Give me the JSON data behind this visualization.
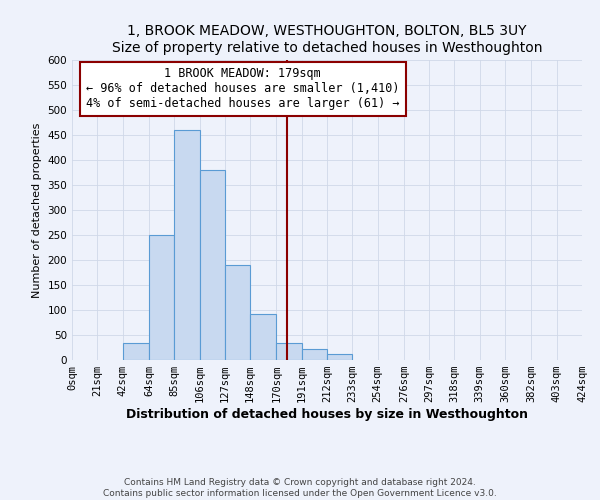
{
  "title": "1, BROOK MEADOW, WESTHOUGHTON, BOLTON, BL5 3UY",
  "subtitle": "Size of property relative to detached houses in Westhoughton",
  "xlabel": "Distribution of detached houses by size in Westhoughton",
  "ylabel": "Number of detached properties",
  "bin_edges": [
    0,
    21,
    42,
    64,
    85,
    106,
    127,
    148,
    170,
    191,
    212,
    233,
    254,
    276,
    297,
    318,
    339,
    360,
    382,
    403,
    424
  ],
  "bin_labels": [
    "0sqm",
    "21sqm",
    "42sqm",
    "64sqm",
    "85sqm",
    "106sqm",
    "127sqm",
    "148sqm",
    "170sqm",
    "191sqm",
    "212sqm",
    "233sqm",
    "254sqm",
    "276sqm",
    "297sqm",
    "318sqm",
    "339sqm",
    "360sqm",
    "382sqm",
    "403sqm",
    "424sqm"
  ],
  "counts": [
    0,
    0,
    35,
    250,
    460,
    380,
    190,
    92,
    35,
    22,
    12,
    0,
    0,
    0,
    0,
    0,
    0,
    0,
    0,
    0
  ],
  "bar_facecolor": "#c8d9f0",
  "bar_edgecolor": "#5a9bd4",
  "vline_x": 179,
  "vline_color": "#8b0000",
  "annotation_title": "1 BROOK MEADOW: 179sqm",
  "annotation_line1": "← 96% of detached houses are smaller (1,410)",
  "annotation_line2": "4% of semi-detached houses are larger (61) →",
  "annotation_box_edgecolor": "#8b0000",
  "annotation_box_facecolor": "#ffffff",
  "ylim": [
    0,
    600
  ],
  "yticks": [
    0,
    50,
    100,
    150,
    200,
    250,
    300,
    350,
    400,
    450,
    500,
    550,
    600
  ],
  "grid_color": "#d0d8e8",
  "background_color": "#eef2fb",
  "footer1": "Contains HM Land Registry data © Crown copyright and database right 2024.",
  "footer2": "Contains public sector information licensed under the Open Government Licence v3.0.",
  "title_fontsize": 10,
  "subtitle_fontsize": 9,
  "xlabel_fontsize": 9,
  "ylabel_fontsize": 8,
  "tick_fontsize": 7.5,
  "annotation_fontsize": 8.5,
  "footer_fontsize": 6.5
}
